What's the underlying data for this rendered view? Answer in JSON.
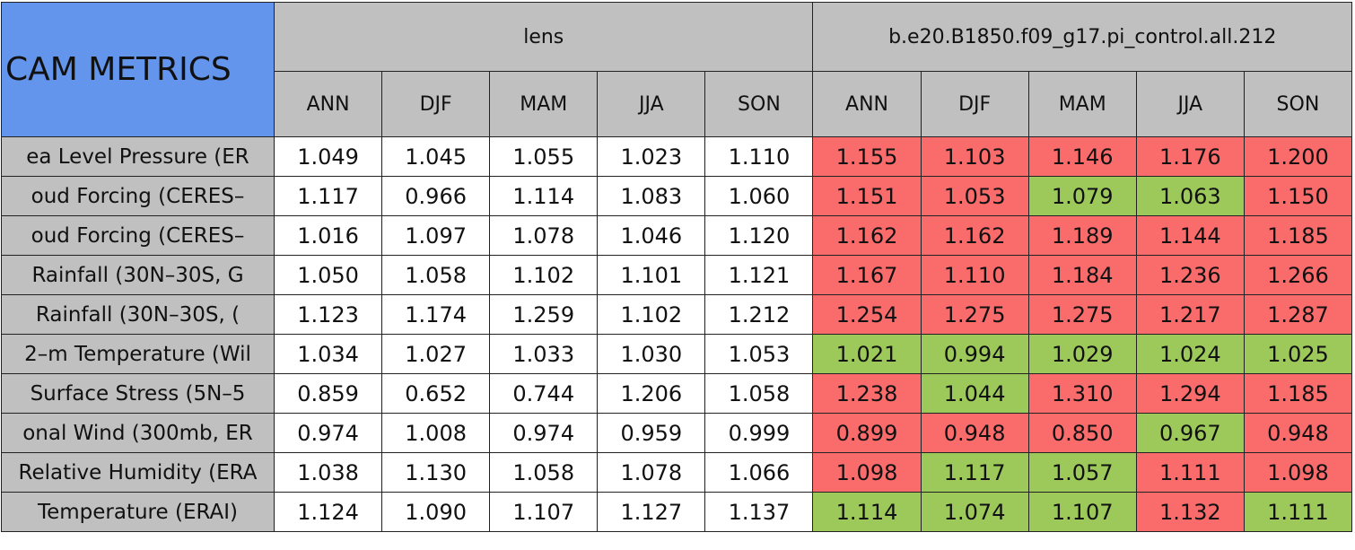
{
  "table": {
    "title": "CAM METRICS",
    "groups": [
      {
        "name": "lens",
        "columns": [
          "ANN",
          "DJF",
          "MAM",
          "JJA",
          "SON"
        ]
      },
      {
        "name": "b.e20.B1850.f09_g17.pi_control.all.212",
        "columns": [
          "ANN",
          "DJF",
          "MAM",
          "JJA",
          "SON"
        ]
      }
    ],
    "colors": {
      "r": "#fa6b6b",
      "g": "#9cc95a",
      "w": "#ffffff"
    },
    "rows": [
      {
        "label": "ea Level Pressure (ER",
        "values": [
          "1.049",
          "1.045",
          "1.055",
          "1.023",
          "1.110",
          "1.155",
          "1.103",
          "1.146",
          "1.176",
          "1.200"
        ],
        "shade": [
          "w",
          "w",
          "w",
          "w",
          "w",
          "r",
          "r",
          "r",
          "r",
          "r"
        ]
      },
      {
        "label": "oud Forcing (CERES–",
        "values": [
          "1.117",
          "0.966",
          "1.114",
          "1.083",
          "1.060",
          "1.151",
          "1.053",
          "1.079",
          "1.063",
          "1.150"
        ],
        "shade": [
          "w",
          "w",
          "w",
          "w",
          "w",
          "r",
          "r",
          "g",
          "g",
          "r"
        ]
      },
      {
        "label": "oud Forcing (CERES–",
        "values": [
          "1.016",
          "1.097",
          "1.078",
          "1.046",
          "1.120",
          "1.162",
          "1.162",
          "1.189",
          "1.144",
          "1.185"
        ],
        "shade": [
          "w",
          "w",
          "w",
          "w",
          "w",
          "r",
          "r",
          "r",
          "r",
          "r"
        ]
      },
      {
        "label": "Rainfall (30N–30S, G",
        "values": [
          "1.050",
          "1.058",
          "1.102",
          "1.101",
          "1.121",
          "1.167",
          "1.110",
          "1.184",
          "1.236",
          "1.266"
        ],
        "shade": [
          "w",
          "w",
          "w",
          "w",
          "w",
          "r",
          "r",
          "r",
          "r",
          "r"
        ]
      },
      {
        "label": "Rainfall (30N–30S, (",
        "values": [
          "1.123",
          "1.174",
          "1.259",
          "1.102",
          "1.212",
          "1.254",
          "1.275",
          "1.275",
          "1.217",
          "1.287"
        ],
        "shade": [
          "w",
          "w",
          "w",
          "w",
          "w",
          "r",
          "r",
          "r",
          "r",
          "r"
        ]
      },
      {
        "label": "2–m Temperature (Wil",
        "values": [
          "1.034",
          "1.027",
          "1.033",
          "1.030",
          "1.053",
          "1.021",
          "0.994",
          "1.029",
          "1.024",
          "1.025"
        ],
        "shade": [
          "w",
          "w",
          "w",
          "w",
          "w",
          "g",
          "g",
          "g",
          "g",
          "g"
        ]
      },
      {
        "label": "Surface Stress (5N–5",
        "values": [
          "0.859",
          "0.652",
          "0.744",
          "1.206",
          "1.058",
          "1.238",
          "1.044",
          "1.310",
          "1.294",
          "1.185"
        ],
        "shade": [
          "w",
          "w",
          "w",
          "w",
          "w",
          "r",
          "g",
          "r",
          "r",
          "r"
        ]
      },
      {
        "label": "onal Wind (300mb, ER",
        "values": [
          "0.974",
          "1.008",
          "0.974",
          "0.959",
          "0.999",
          "0.899",
          "0.948",
          "0.850",
          "0.967",
          "0.948"
        ],
        "shade": [
          "w",
          "w",
          "w",
          "w",
          "w",
          "r",
          "r",
          "r",
          "g",
          "r"
        ]
      },
      {
        "label": "Relative Humidity (ERA",
        "values": [
          "1.038",
          "1.130",
          "1.058",
          "1.078",
          "1.066",
          "1.098",
          "1.117",
          "1.057",
          "1.111",
          "1.098"
        ],
        "shade": [
          "w",
          "w",
          "w",
          "w",
          "w",
          "r",
          "g",
          "g",
          "r",
          "r"
        ]
      },
      {
        "label": "Temperature (ERAI)",
        "values": [
          "1.124",
          "1.090",
          "1.107",
          "1.127",
          "1.137",
          "1.114",
          "1.074",
          "1.107",
          "1.132",
          "1.111"
        ],
        "shade": [
          "w",
          "w",
          "w",
          "w",
          "w",
          "g",
          "g",
          "g",
          "r",
          "g"
        ]
      }
    ]
  }
}
